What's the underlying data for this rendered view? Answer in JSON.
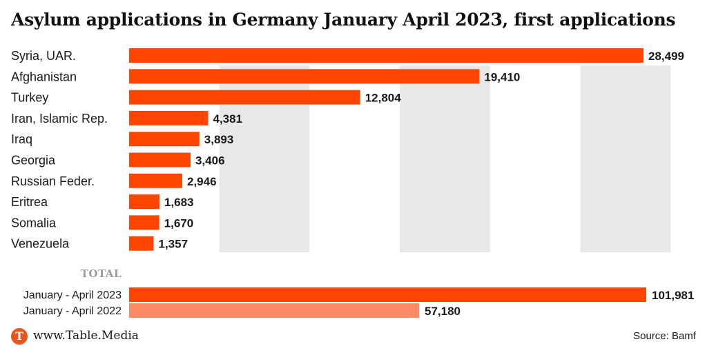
{
  "chart_data": [
    {
      "type": "bar",
      "title": "Asylum applications in Germany January April 2023, first applications",
      "orientation": "horizontal",
      "categories": [
        "Syria, UAR.",
        "Afghanistan",
        "Turkey",
        "Iran, Islamic Rep.",
        "Iraq",
        "Georgia",
        "Russian Feder.",
        "Eritrea",
        "Somalia",
        "Venezuela"
      ],
      "values": [
        28499,
        19410,
        12804,
        4381,
        3893,
        3406,
        2946,
        1683,
        1670,
        1357
      ],
      "value_labels": [
        "28,499",
        "19,410",
        "12,804",
        "4,381",
        "3,893",
        "3,406",
        "2,946",
        "1,683",
        "1,670",
        "1,357"
      ],
      "bar_color": "#ff4500",
      "grid": "alternating vertical bands",
      "band_color": "#e8e8e8"
    },
    {
      "type": "bar",
      "orientation": "horizontal",
      "heading": "TOTAL",
      "categories": [
        "January - April 2023",
        "January - April 2022"
      ],
      "values": [
        101981,
        57180
      ],
      "value_labels": [
        "101,981",
        "57,180"
      ],
      "colors": [
        "#ff4500",
        "#fc8a66"
      ]
    }
  ],
  "footer": {
    "logo_letter": "T",
    "site": "www.Table.Media",
    "source": "Source: Bamf"
  },
  "colors": {
    "accent": "#ff4500",
    "light_accent": "#fc8a66",
    "logo": "#e8541b"
  }
}
